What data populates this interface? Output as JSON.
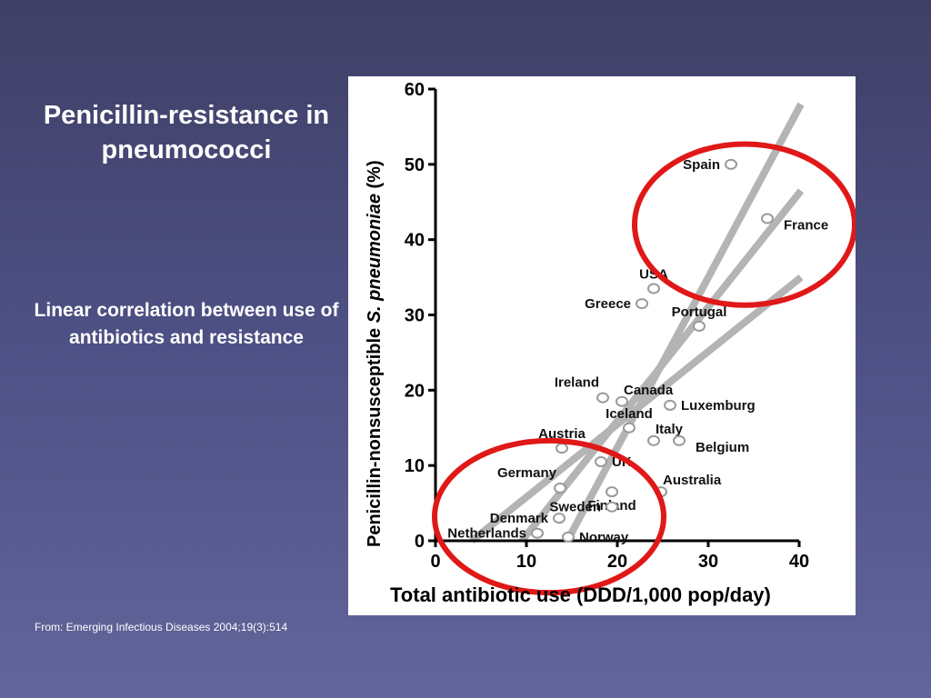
{
  "slide": {
    "title": "Penicillin-resistance in pneumococci",
    "subtitle": "Linear correlation between use of antibiotics and resistance",
    "source": "From: Emerging Infectious Diseases 2004;19(3):514"
  },
  "chart_data": {
    "type": "scatter",
    "xlabel": "Total antibiotic use (DDD/1,000 pop/day)",
    "ylabel_prefix": "Penicillin-nonsusceptible ",
    "ylabel_italic": "S. pneumoniae",
    "ylabel_suffix": " (%)",
    "xlim": [
      0,
      40
    ],
    "ylim": [
      0,
      60
    ],
    "x_ticks": [
      0,
      10,
      20,
      30,
      40
    ],
    "y_ticks": [
      0,
      10,
      20,
      30,
      40,
      50,
      60
    ],
    "grid": false,
    "points": [
      {
        "label": "Spain",
        "x": 32.5,
        "y": 50,
        "label_pos": "left"
      },
      {
        "label": "France",
        "x": 36.5,
        "y": 42.8,
        "label_pos": "below-right"
      },
      {
        "label": "USA",
        "x": 24,
        "y": 33.5,
        "label_pos": "above"
      },
      {
        "label": "Greece",
        "x": 22.7,
        "y": 31.5,
        "label_pos": "left"
      },
      {
        "label": "Portugal",
        "x": 29,
        "y": 28.5,
        "label_pos": "above"
      },
      {
        "label": "Ireland",
        "x": 18.4,
        "y": 19,
        "label_pos": "above-left"
      },
      {
        "label": "Canada",
        "x": 20.5,
        "y": 18.5,
        "label_pos": "above-right"
      },
      {
        "label": "Luxemburg",
        "x": 25.8,
        "y": 18,
        "label_pos": "right"
      },
      {
        "label": "Iceland",
        "x": 21.3,
        "y": 15,
        "label_pos": "above"
      },
      {
        "label": "Italy",
        "x": 24,
        "y": 13.3,
        "label_pos": "above-right"
      },
      {
        "label": "Belgium",
        "x": 26.8,
        "y": 13.3,
        "label_pos": "below-right"
      },
      {
        "label": "Austria",
        "x": 13.9,
        "y": 12.3,
        "label_pos": "above"
      },
      {
        "label": "UK",
        "x": 18.2,
        "y": 10.5,
        "label_pos": "right"
      },
      {
        "label": "Australia",
        "x": 24.8,
        "y": 6.5,
        "label_pos": "above-right"
      },
      {
        "label": "Germany",
        "x": 13.7,
        "y": 7,
        "label_pos": "above-left"
      },
      {
        "label": "Finland",
        "x": 19.4,
        "y": 6.5,
        "label_pos": "below"
      },
      {
        "label": "Sweden",
        "x": 19.4,
        "y": 4.5,
        "label_pos": "left"
      },
      {
        "label": "Denmark",
        "x": 13.6,
        "y": 3,
        "label_pos": "left"
      },
      {
        "label": "Netherlands",
        "x": 11.2,
        "y": 1,
        "label_pos": "left"
      },
      {
        "label": "Norway",
        "x": 14.6,
        "y": 0.5,
        "label_pos": "right"
      }
    ],
    "regression_lines": [
      {
        "name": "steep",
        "x1": 14.5,
        "y1": 0,
        "x2": 40.2,
        "y2": 58
      },
      {
        "name": "middle",
        "x1": 9.5,
        "y1": 0,
        "x2": 40.2,
        "y2": 46.5
      },
      {
        "name": "shallow",
        "x1": 4,
        "y1": 0,
        "x2": 40.2,
        "y2": 35
      }
    ],
    "highlight_circles": [
      {
        "name": "high-use",
        "cx": 34,
        "cy": 42,
        "rx": 12.1,
        "ry": 10.7
      },
      {
        "name": "low-use",
        "cx": 12.5,
        "cy": 3.2,
        "rx": 12.6,
        "ry": 10.1
      }
    ],
    "colors": {
      "regression": "#b4b4b4",
      "point": "#9a9a9a",
      "highlight": "#e01818",
      "axis": "#000000"
    }
  }
}
